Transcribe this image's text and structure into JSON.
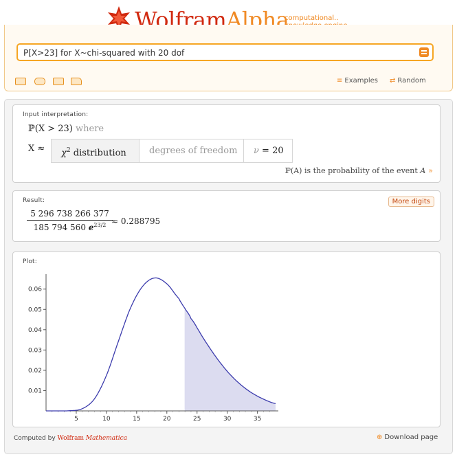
{
  "header": {
    "brand_primary": "Wolfram",
    "brand_secondary": "Alpha",
    "tagline_1": "computational..",
    "tagline_2": "knowledge engine"
  },
  "search": {
    "query": "P[X>23] for X~chi-squared with 20 dof"
  },
  "toolbar": {
    "icons": [
      "keyboard-icon",
      "camera-icon",
      "list-icon",
      "folder-icon"
    ],
    "examples_label": "Examples",
    "random_label": "Random"
  },
  "input_interpretation": {
    "title": "Input interpretation:",
    "prob_prefix": "ℙ(X > 23)",
    "where": "where",
    "x_approx": "X ≈",
    "dist_chi": "χ",
    "dist_power": "2",
    "dist_word": "distribution",
    "param_label": "degrees of freedom",
    "param_symbol": "ν",
    "param_eq": "= 20",
    "note_prefix": "ℙ(A)",
    "note_text": "is the probability of the event",
    "note_event": "A",
    "note_chevron": "»"
  },
  "result": {
    "title": "Result:",
    "more_digits": "More digits",
    "numerator": "5 296 738 266 377",
    "denominator_coef": "185 794 560",
    "denominator_e": "e",
    "denominator_exp": "23/2",
    "approx": "≈ 0.288795"
  },
  "plot": {
    "title": "Plot:"
  },
  "chart_data": {
    "type": "area",
    "title": "",
    "xlabel": "",
    "ylabel": "",
    "xlim": [
      0,
      38
    ],
    "ylim": [
      0,
      0.066
    ],
    "x_ticks": [
      5,
      10,
      15,
      20,
      25,
      30,
      35
    ],
    "y_ticks": [
      0.01,
      0.02,
      0.03,
      0.04,
      0.05,
      0.06
    ],
    "y_tick_labels": [
      "0.01",
      "0.02",
      "0.03",
      "0.04",
      "0.05",
      "0.06"
    ],
    "series": [
      {
        "x": [
          0,
          2,
          4,
          6,
          8,
          10,
          12,
          14,
          16,
          18,
          20,
          22,
          23,
          24,
          26,
          28,
          30,
          32,
          34,
          36,
          38
        ],
        "values": [
          0,
          0.0,
          0.0001,
          0.0011,
          0.0059,
          0.0175,
          0.0345,
          0.0508,
          0.0614,
          0.0655,
          0.0626,
          0.0553,
          0.0504,
          0.0455,
          0.036,
          0.0271,
          0.0195,
          0.0135,
          0.009,
          0.0058,
          0.0036
        ]
      }
    ],
    "shade_from_x": 23,
    "curve_color": "#3c3cad",
    "shade_color": "#dcdcf0"
  },
  "footer": {
    "computed_by": "Computed by",
    "brand": "Wolfram",
    "product": "Mathematica",
    "download": "Download page"
  },
  "colors": {
    "accent": "#f08a24",
    "brand_red": "#d1290f"
  }
}
